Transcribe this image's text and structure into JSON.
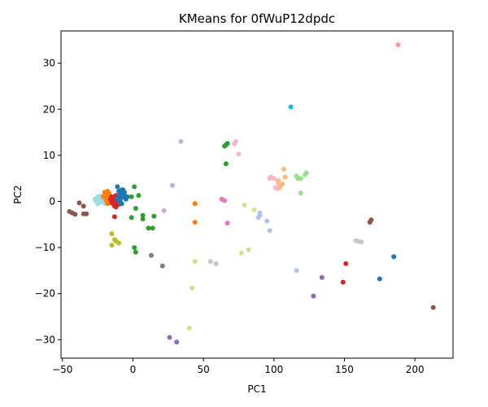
{
  "chart_data": {
    "type": "scatter",
    "title": "KMeans for 0fWuP12dpdc",
    "xlabel": "PC1",
    "ylabel": "PC2",
    "xlim": [
      -51,
      227
    ],
    "ylim": [
      -34,
      37
    ],
    "xticks": [
      -50,
      0,
      50,
      100,
      150,
      200
    ],
    "yticks": [
      -30,
      -20,
      -10,
      0,
      10,
      20,
      30
    ],
    "grid": false,
    "legend": "none",
    "clusters": [
      {
        "color": "#9edae5",
        "points": [
          [
            -27,
            0.5
          ],
          [
            -26,
            0
          ],
          [
            -25,
            1
          ],
          [
            -25,
            -0.5
          ],
          [
            -24,
            0.3
          ],
          [
            -23,
            1.2
          ],
          [
            -22,
            0
          ],
          [
            -21,
            0.8
          ],
          [
            -20,
            -0.4
          ],
          [
            -19,
            0.5
          ],
          [
            -18,
            1
          ],
          [
            -20,
            1.5
          ],
          [
            -24,
            -0.3
          ],
          [
            -22,
            0.6
          ]
        ]
      },
      {
        "color": "#ff7f0e",
        "points": [
          [
            -20,
            2
          ],
          [
            -19,
            1.5
          ],
          [
            -18,
            1
          ],
          [
            -17,
            0.5
          ],
          [
            -18,
            2.2
          ],
          [
            -17,
            0
          ],
          [
            -16,
            1.2
          ],
          [
            -19,
            0.2
          ],
          [
            -21,
            1
          ],
          [
            -16,
            -0.3
          ],
          [
            -18,
            -0.5
          ],
          [
            -17,
            1.8
          ],
          [
            44,
            -0.5
          ],
          [
            44,
            -4.5
          ]
        ]
      },
      {
        "color": "#d62728",
        "points": [
          [
            -16,
            0.5
          ],
          [
            -15,
            1
          ],
          [
            -14,
            -0.5
          ],
          [
            -13,
            0.8
          ],
          [
            -12,
            0
          ],
          [
            -13,
            -1
          ],
          [
            -12,
            1.3
          ],
          [
            -11,
            -0.3
          ],
          [
            -10,
            0.5
          ],
          [
            -14,
            0.2
          ],
          [
            -15,
            -0.2
          ],
          [
            -11,
            1
          ],
          [
            -12,
            -1.2
          ],
          [
            -10,
            -0.6
          ],
          [
            -13,
            -3.3
          ],
          [
            151,
            -13.5
          ],
          [
            149,
            -17.5
          ]
        ]
      },
      {
        "color": "#1f77b4",
        "points": [
          [
            -11,
            3.2
          ],
          [
            -10,
            2.2
          ],
          [
            -9,
            1.8
          ],
          [
            -8,
            2.5
          ],
          [
            -7,
            1
          ],
          [
            -6,
            2
          ],
          [
            -5,
            0.5
          ],
          [
            -9,
            0.3
          ],
          [
            -8,
            -0.5
          ],
          [
            -10,
            1
          ],
          [
            -7,
            2.5
          ],
          [
            -6,
            1.3
          ],
          [
            -4,
            1
          ],
          [
            -9,
            -0.2
          ],
          [
            -11,
            0.5
          ],
          [
            -8,
            1.5
          ],
          [
            185,
            -12
          ],
          [
            175,
            -16.8
          ]
        ]
      },
      {
        "color": "#2ca02c",
        "points": [
          [
            -1,
            1
          ],
          [
            1,
            3.2
          ],
          [
            2,
            -1.5
          ],
          [
            4,
            1.3
          ],
          [
            -1,
            -3.5
          ],
          [
            7,
            -3
          ],
          [
            7,
            -3.8
          ],
          [
            11,
            -5.8
          ],
          [
            14,
            -5.8
          ],
          [
            15,
            -3.2
          ],
          [
            1,
            -10
          ],
          [
            2,
            -11
          ],
          [
            65,
            12
          ],
          [
            66,
            12.3
          ],
          [
            67,
            12.6
          ],
          [
            66,
            8.2
          ]
        ]
      },
      {
        "color": "#bcbd22",
        "points": [
          [
            -15,
            -7
          ],
          [
            -13,
            -8.3
          ],
          [
            -12,
            -8.6
          ],
          [
            -10,
            -9
          ],
          [
            -15,
            -9.5
          ]
        ]
      },
      {
        "color": "#8c564b",
        "points": [
          [
            -45,
            -2.2
          ],
          [
            -43,
            -2.5
          ],
          [
            -41,
            -2.8
          ],
          [
            -38,
            -0.3
          ],
          [
            -35,
            -1
          ],
          [
            -35,
            -2.7
          ],
          [
            -33,
            -2.7
          ],
          [
            168,
            -4.5
          ],
          [
            169,
            -4
          ],
          [
            213,
            -23
          ]
        ]
      },
      {
        "color": "#7f7f7f",
        "points": [
          [
            13,
            -11.7
          ],
          [
            21,
            -14
          ]
        ]
      },
      {
        "color": "#c5b0d5",
        "points": [
          [
            28,
            3.5
          ],
          [
            34,
            13
          ],
          [
            22,
            -2
          ]
        ]
      },
      {
        "color": "#e377c2",
        "points": [
          [
            63,
            0.5
          ],
          [
            65,
            0.2
          ],
          [
            67,
            -4.7
          ]
        ]
      },
      {
        "color": "#f7b6d2",
        "points": [
          [
            72,
            12.5
          ],
          [
            73,
            13
          ],
          [
            75,
            10.3
          ],
          [
            97,
            5
          ],
          [
            98,
            5.3
          ],
          [
            100,
            5
          ],
          [
            101,
            3
          ],
          [
            104,
            3.5
          ],
          [
            103,
            4
          ],
          [
            102,
            2.8
          ]
        ]
      },
      {
        "color": "#ffbb78",
        "points": [
          [
            103,
            4.5
          ],
          [
            105,
            3.5
          ],
          [
            106,
            3.8
          ],
          [
            104,
            3
          ],
          [
            107,
            7
          ],
          [
            108,
            5.3
          ]
        ]
      },
      {
        "color": "#98df8a",
        "points": [
          [
            116,
            5.5
          ],
          [
            117,
            5
          ],
          [
            119,
            5
          ],
          [
            122,
            5.8
          ],
          [
            123,
            6.2
          ],
          [
            119,
            1.8
          ]
        ]
      },
      {
        "color": "#aec7e8",
        "points": [
          [
            89,
            -3.5
          ],
          [
            90,
            -2.5
          ],
          [
            90,
            -3
          ],
          [
            95,
            -4.3
          ],
          [
            97,
            -6.3
          ],
          [
            116,
            -15
          ]
        ]
      },
      {
        "color": "#dbdb8d",
        "points": [
          [
            44,
            -13
          ],
          [
            42,
            -18.8
          ],
          [
            40,
            -27.5
          ],
          [
            79,
            -0.8
          ],
          [
            86,
            -1.8
          ],
          [
            77,
            -11.2
          ],
          [
            82,
            -10.5
          ]
        ]
      },
      {
        "color": "#c7c7c7",
        "points": [
          [
            55,
            -13
          ],
          [
            59,
            -13.5
          ],
          [
            158,
            -8.5
          ],
          [
            160,
            -8.7
          ],
          [
            162,
            -8.8
          ]
        ]
      },
      {
        "color": "#9467bd",
        "points": [
          [
            26,
            -29.5
          ],
          [
            31,
            -30.5
          ],
          [
            128,
            -20.5
          ],
          [
            134,
            -16.5
          ]
        ]
      },
      {
        "color": "#17becf",
        "points": [
          [
            112,
            20.5
          ]
        ]
      },
      {
        "color": "#ff9896",
        "points": [
          [
            188,
            34
          ]
        ]
      }
    ]
  }
}
